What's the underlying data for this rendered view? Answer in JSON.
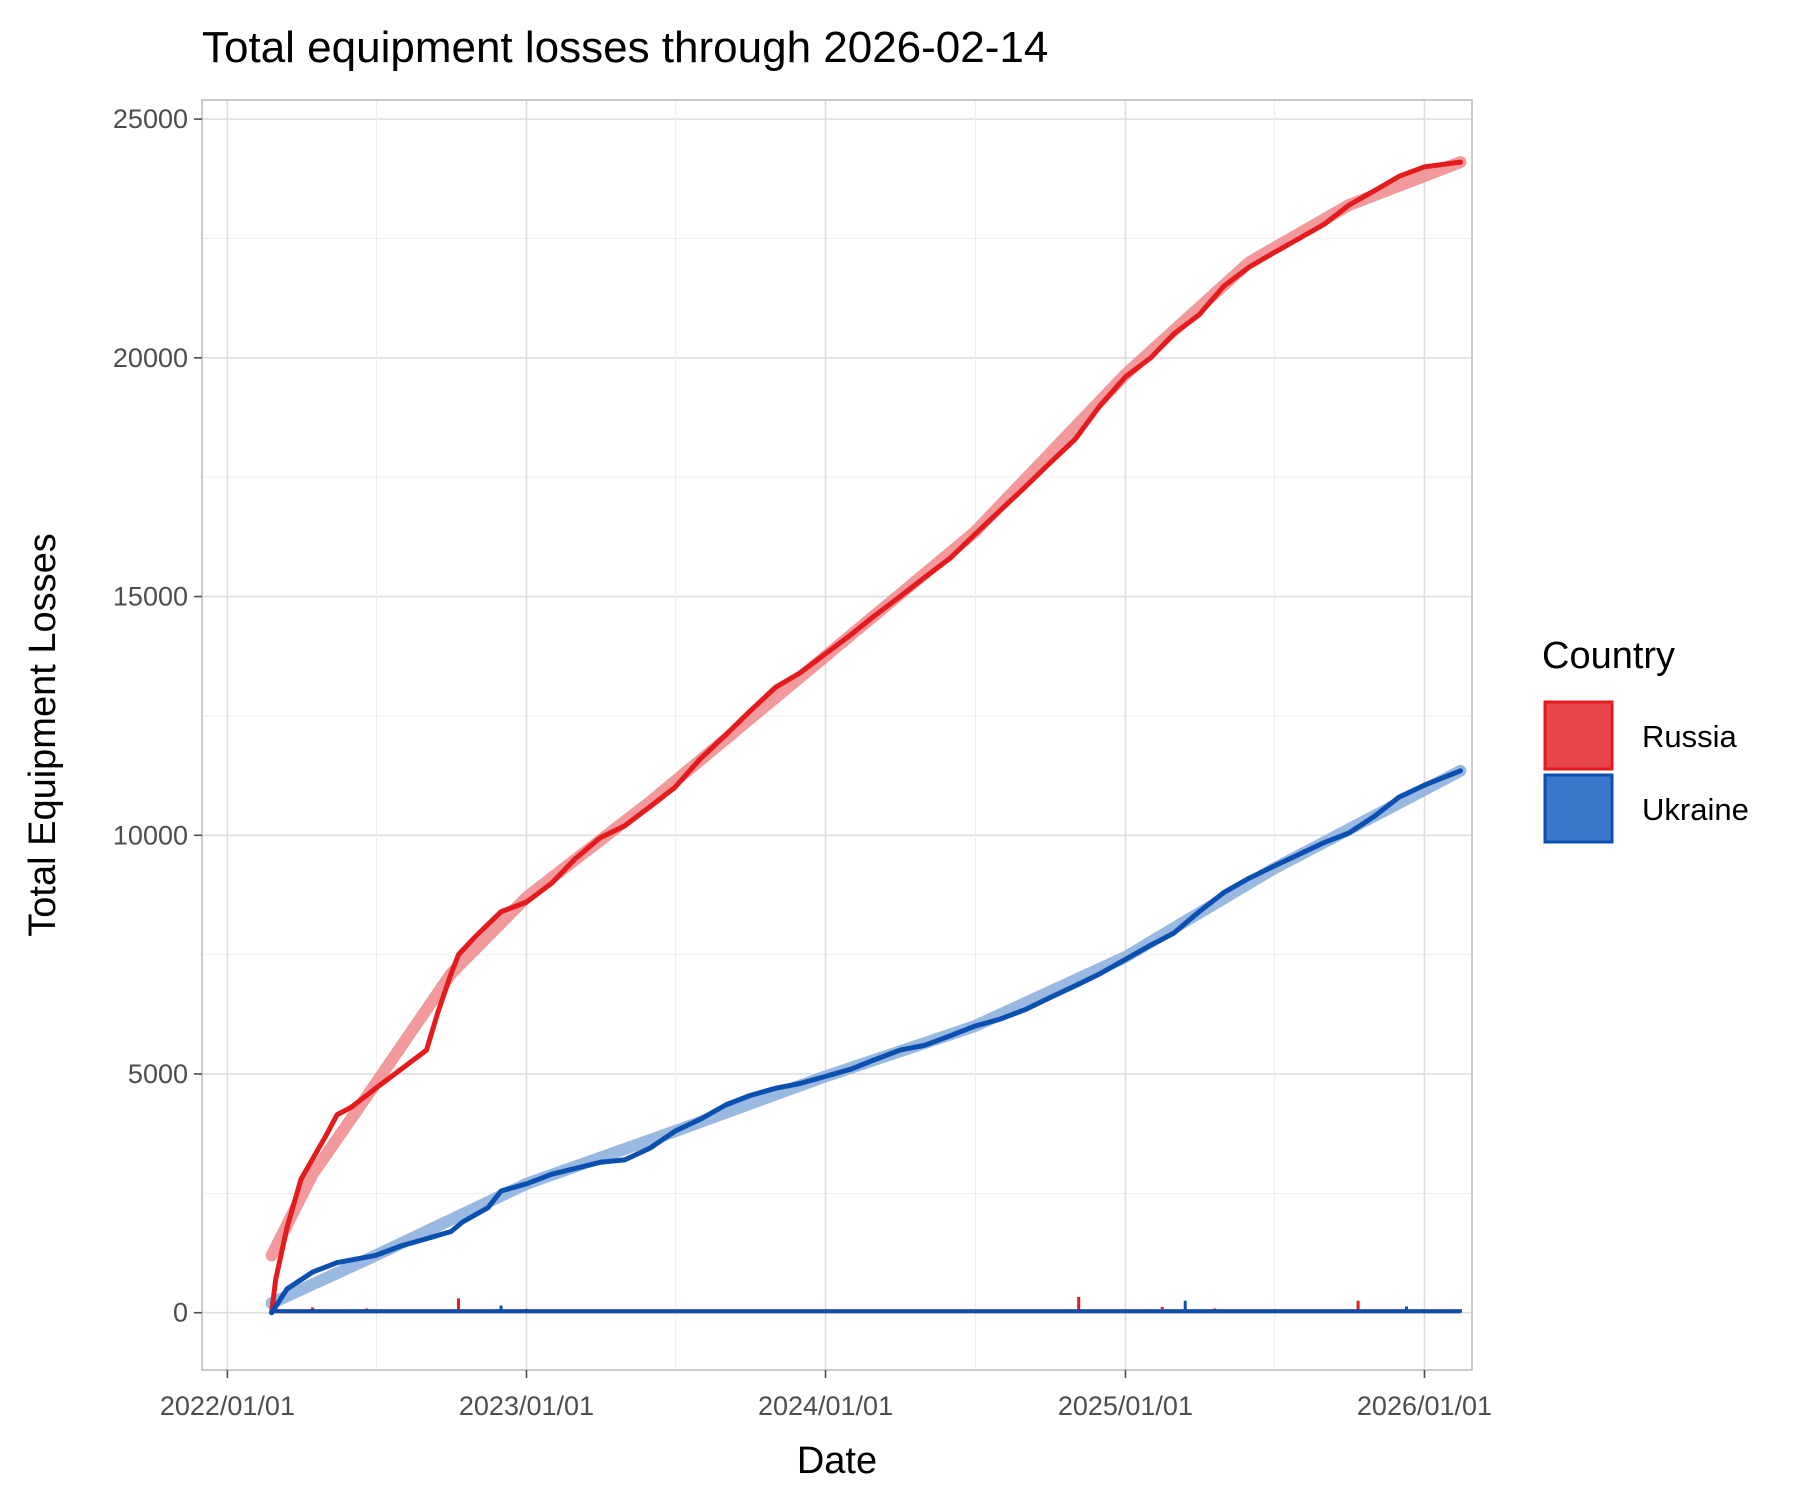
{
  "chart_data": {
    "type": "line",
    "title": "Total equipment losses through 2026-02-14",
    "xlabel": "Date",
    "ylabel": "Total Equipment Losses",
    "x_ticks": [
      "2022/01/01",
      "2023/01/01",
      "2024/01/01",
      "2025/01/01",
      "2026/01/01"
    ],
    "y_ticks": [
      "0",
      "5000",
      "10000",
      "15000",
      "20000",
      "25000"
    ],
    "xlim": [
      "2021-12-01",
      "2026-02-28"
    ],
    "ylim": [
      -1200,
      25400
    ],
    "grid": true,
    "legend": {
      "title": "Country",
      "position": "right"
    },
    "series": [
      {
        "name": "Russia",
        "color": "#e41a1c",
        "fill": "#e8474a",
        "trend_color": "#f08e90",
        "cumulative": [
          [
            "2022-02-24",
            0
          ],
          [
            "2022-03-01",
            700
          ],
          [
            "2022-03-15",
            1800
          ],
          [
            "2022-04-01",
            2800
          ],
          [
            "2022-05-01",
            3700
          ],
          [
            "2022-05-15",
            4150
          ],
          [
            "2022-06-01",
            4300
          ],
          [
            "2022-07-01",
            4700
          ],
          [
            "2022-08-01",
            5100
          ],
          [
            "2022-09-01",
            5500
          ],
          [
            "2022-09-15",
            6300
          ],
          [
            "2022-10-01",
            7100
          ],
          [
            "2022-10-10",
            7500
          ],
          [
            "2022-11-01",
            7900
          ],
          [
            "2022-12-01",
            8400
          ],
          [
            "2023-01-01",
            8600
          ],
          [
            "2023-02-01",
            9000
          ],
          [
            "2023-03-01",
            9500
          ],
          [
            "2023-04-01",
            9950
          ],
          [
            "2023-05-01",
            10200
          ],
          [
            "2023-06-01",
            10600
          ],
          [
            "2023-07-01",
            11000
          ],
          [
            "2023-08-01",
            11600
          ],
          [
            "2023-09-01",
            12100
          ],
          [
            "2023-10-01",
            12600
          ],
          [
            "2023-11-01",
            13100
          ],
          [
            "2023-12-01",
            13400
          ],
          [
            "2024-01-01",
            13800
          ],
          [
            "2024-02-01",
            14200
          ],
          [
            "2024-03-01",
            14600
          ],
          [
            "2024-04-01",
            15000
          ],
          [
            "2024-05-01",
            15400
          ],
          [
            "2024-06-01",
            15800
          ],
          [
            "2024-07-01",
            16300
          ],
          [
            "2024-08-01",
            16800
          ],
          [
            "2024-09-01",
            17300
          ],
          [
            "2024-10-01",
            17800
          ],
          [
            "2024-11-01",
            18300
          ],
          [
            "2024-12-01",
            19000
          ],
          [
            "2025-01-01",
            19600
          ],
          [
            "2025-02-01",
            20000
          ],
          [
            "2025-03-01",
            20500
          ],
          [
            "2025-04-01",
            20900
          ],
          [
            "2025-05-01",
            21500
          ],
          [
            "2025-06-01",
            21900
          ],
          [
            "2025-07-01",
            22200
          ],
          [
            "2025-08-01",
            22500
          ],
          [
            "2025-09-01",
            22800
          ],
          [
            "2025-10-01",
            23200
          ],
          [
            "2025-11-01",
            23500
          ],
          [
            "2025-12-01",
            23800
          ],
          [
            "2026-01-01",
            24000
          ],
          [
            "2026-02-14",
            24100
          ]
        ],
        "trend": [
          [
            "2022-02-24",
            1200
          ],
          [
            "2022-04-15",
            2900
          ],
          [
            "2022-07-01",
            4800
          ],
          [
            "2022-10-01",
            7100
          ],
          [
            "2023-01-01",
            8700
          ],
          [
            "2023-06-01",
            10700
          ],
          [
            "2024-01-01",
            13750
          ],
          [
            "2024-07-01",
            16350
          ],
          [
            "2025-01-01",
            19650
          ],
          [
            "2025-06-01",
            22000
          ],
          [
            "2025-10-01",
            23200
          ],
          [
            "2026-02-14",
            24100
          ]
        ],
        "daily_spikes": [
          [
            "2022-03-01",
            150
          ],
          [
            "2022-04-15",
            110
          ],
          [
            "2022-06-20",
            90
          ],
          [
            "2022-10-10",
            300
          ],
          [
            "2023-01-01",
            80
          ],
          [
            "2024-09-01",
            60
          ],
          [
            "2024-11-05",
            330
          ],
          [
            "2025-02-15",
            120
          ],
          [
            "2025-04-20",
            90
          ],
          [
            "2025-10-12",
            250
          ]
        ]
      },
      {
        "name": "Ukraine",
        "color": "#0b4fb0",
        "fill": "#3a78c9",
        "trend_color": "#8fb1dd",
        "cumulative": [
          [
            "2022-02-24",
            0
          ],
          [
            "2022-03-15",
            500
          ],
          [
            "2022-04-15",
            850
          ],
          [
            "2022-05-15",
            1050
          ],
          [
            "2022-07-01",
            1200
          ],
          [
            "2022-08-01",
            1400
          ],
          [
            "2022-09-01",
            1550
          ],
          [
            "2022-10-01",
            1700
          ],
          [
            "2022-10-15",
            1900
          ],
          [
            "2022-11-15",
            2200
          ],
          [
            "2022-12-01",
            2550
          ],
          [
            "2023-01-01",
            2700
          ],
          [
            "2023-02-01",
            2900
          ],
          [
            "2023-04-01",
            3150
          ],
          [
            "2023-05-01",
            3200
          ],
          [
            "2023-06-01",
            3450
          ],
          [
            "2023-07-01",
            3800
          ],
          [
            "2023-08-01",
            4050
          ],
          [
            "2023-09-01",
            4350
          ],
          [
            "2023-10-01",
            4550
          ],
          [
            "2023-11-01",
            4700
          ],
          [
            "2023-12-01",
            4800
          ],
          [
            "2024-01-01",
            4950
          ],
          [
            "2024-02-01",
            5100
          ],
          [
            "2024-03-01",
            5300
          ],
          [
            "2024-04-01",
            5500
          ],
          [
            "2024-05-01",
            5600
          ],
          [
            "2024-06-01",
            5800
          ],
          [
            "2024-07-01",
            6000
          ],
          [
            "2024-08-01",
            6150
          ],
          [
            "2024-09-01",
            6350
          ],
          [
            "2024-10-01",
            6600
          ],
          [
            "2024-11-01",
            6850
          ],
          [
            "2024-12-01",
            7100
          ],
          [
            "2025-01-01",
            7400
          ],
          [
            "2025-02-01",
            7700
          ],
          [
            "2025-03-01",
            7950
          ],
          [
            "2025-04-01",
            8400
          ],
          [
            "2025-05-01",
            8800
          ],
          [
            "2025-06-01",
            9100
          ],
          [
            "2025-07-01",
            9350
          ],
          [
            "2025-08-01",
            9600
          ],
          [
            "2025-09-01",
            9850
          ],
          [
            "2025-10-01",
            10050
          ],
          [
            "2025-11-01",
            10400
          ],
          [
            "2025-12-01",
            10800
          ],
          [
            "2026-01-01",
            11050
          ],
          [
            "2026-02-14",
            11350
          ]
        ],
        "trend": [
          [
            "2022-02-24",
            200
          ],
          [
            "2022-07-01",
            1200
          ],
          [
            "2023-01-01",
            2700
          ],
          [
            "2023-07-01",
            3800
          ],
          [
            "2024-01-01",
            4950
          ],
          [
            "2024-07-01",
            6000
          ],
          [
            "2025-01-01",
            7450
          ],
          [
            "2025-07-01",
            9300
          ],
          [
            "2026-02-14",
            11350
          ]
        ],
        "daily_spikes": [
          [
            "2022-03-01",
            120
          ],
          [
            "2022-12-01",
            150
          ],
          [
            "2023-06-01",
            60
          ],
          [
            "2025-03-15",
            250
          ],
          [
            "2025-12-10",
            130
          ],
          [
            "2026-02-14",
            70
          ]
        ]
      }
    ]
  }
}
